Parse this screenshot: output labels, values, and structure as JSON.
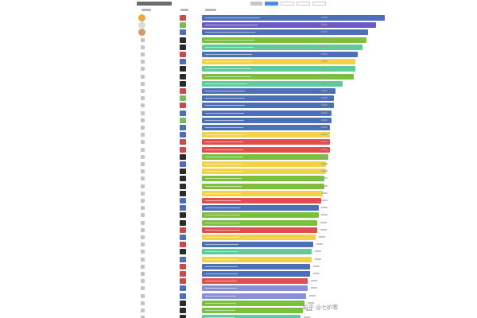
{
  "chart_data": {
    "type": "bar",
    "orientation": "horizontal",
    "bars": [
      {
        "color": "#4d6fb8",
        "value": 1.0,
        "medal": "#f0a640",
        "logo": "#c84a4a"
      },
      {
        "color": "#6b5bc4",
        "value": 0.95,
        "medal": "#d8dde3",
        "logo": "#7ab860"
      },
      {
        "color": "#4d6fb8",
        "value": 0.91,
        "medal": "#d89a63",
        "logo": "#4d6fb8"
      },
      {
        "color": "#7bbf3c",
        "value": 0.9,
        "logo": "#2b2b2b"
      },
      {
        "color": "#5fcb9a",
        "value": 0.88,
        "logo": "#2b2b2b"
      },
      {
        "color": "#4d6fb8",
        "value": 0.85,
        "logo": "#c84a4a"
      },
      {
        "color": "#f2d24b",
        "value": 0.84,
        "logo": "#4d6fb8"
      },
      {
        "color": "#5fcb9a",
        "value": 0.84,
        "logo": "#2b2b2b"
      },
      {
        "color": "#7bbf3c",
        "value": 0.83,
        "logo": "#2b2b2b"
      },
      {
        "color": "#5fcb9a",
        "value": 0.77,
        "logo": "#2b2b2b"
      },
      {
        "color": "#4d6fb8",
        "value": 0.73,
        "logo": "#c84a4a"
      },
      {
        "color": "#4d6fb8",
        "value": 0.72,
        "logo": "#7ab860"
      },
      {
        "color": "#4d6fb8",
        "value": 0.72,
        "logo": "#c84a4a"
      },
      {
        "color": "#4d6fb8",
        "value": 0.71,
        "logo": "#4d6fb8"
      },
      {
        "color": "#4d6fb8",
        "value": 0.71,
        "logo": "#7ab860"
      },
      {
        "color": "#4d6fb8",
        "value": 0.7,
        "logo": "#4d6fb8"
      },
      {
        "color": "#f2d24b",
        "value": 0.7,
        "logo": "#4d6fb8"
      },
      {
        "color": "#e04e4e",
        "value": 0.7,
        "logo": "#c84a4a"
      },
      {
        "color": "#e04e4e",
        "value": 0.7,
        "logo": "#c84a4a"
      },
      {
        "color": "#7bbf3c",
        "value": 0.69,
        "logo": "#2b2b2b"
      },
      {
        "color": "#f2d24b",
        "value": 0.68,
        "logo": "#4d6fb8"
      },
      {
        "color": "#f2d24b",
        "value": 0.68,
        "logo": "#2b2b2b"
      },
      {
        "color": "#7bbf3c",
        "value": 0.67,
        "logo": "#2b2b2b"
      },
      {
        "color": "#7bbf3c",
        "value": 0.67,
        "logo": "#2b2b2b"
      },
      {
        "color": "#f2d24b",
        "value": 0.66,
        "logo": "#2b2b2b"
      },
      {
        "color": "#e04e4e",
        "value": 0.65,
        "logo": "#4d6fb8"
      },
      {
        "color": "#4d6fb8",
        "value": 0.64,
        "logo": "#4d6fb8"
      },
      {
        "color": "#7bbf3c",
        "value": 0.64,
        "logo": "#2b2b2b"
      },
      {
        "color": "#7bbf3c",
        "value": 0.63,
        "logo": "#2b2b2b"
      },
      {
        "color": "#e04e4e",
        "value": 0.63,
        "logo": "#c84a4a"
      },
      {
        "color": "#f2d24b",
        "value": 0.62,
        "logo": "#4d6fb8"
      },
      {
        "color": "#4d6fb8",
        "value": 0.61,
        "logo": "#c84a4a"
      },
      {
        "color": "#5fcb9a",
        "value": 0.6,
        "logo": "#2b2b2b"
      },
      {
        "color": "#f2d24b",
        "value": 0.6,
        "logo": "#4d6fb8"
      },
      {
        "color": "#4d6fb8",
        "value": 0.59,
        "logo": "#c84a4a"
      },
      {
        "color": "#4d6fb8",
        "value": 0.59,
        "logo": "#c84a4a"
      },
      {
        "color": "#e04e4e",
        "value": 0.58,
        "logo": "#c84a4a"
      },
      {
        "color": "#8b8fd6",
        "value": 0.58,
        "logo": "#4d6fb8"
      },
      {
        "color": "#8b8fd6",
        "value": 0.57,
        "logo": "#4d6fb8"
      },
      {
        "color": "#7bbf3c",
        "value": 0.56,
        "logo": "#2b2b2b"
      },
      {
        "color": "#7bbf3c",
        "value": 0.55,
        "logo": "#2b2b2b"
      },
      {
        "color": "#5fcb9a",
        "value": 0.54,
        "logo": "#2b2b2b"
      }
    ]
  },
  "watermark": "知乎 @七炉寒"
}
